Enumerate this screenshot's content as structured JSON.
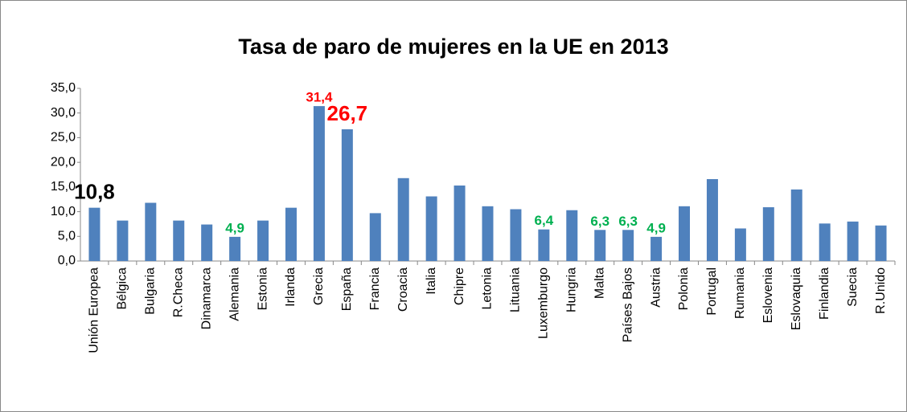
{
  "chart_data": {
    "type": "bar",
    "title": "Tasa de paro de mujeres en la UE en 2013",
    "categories": [
      "Unión Europea",
      "Bélgica",
      "Bulgaria",
      "R.Checa",
      "Dinamarca",
      "Alemania",
      "Estonia",
      "Irlanda",
      "Grecia",
      "España",
      "Francia",
      "Croacia",
      "Italia",
      "Chipre",
      "Letonia",
      "Lituania",
      "Luxemburgo",
      "Hungria",
      "Malta",
      "Países Bajos",
      "Austria",
      "Polonia",
      "Portugal",
      "Rumania",
      "Eslovenia",
      "Eslovaquia",
      "Finlandia",
      "Suecia",
      "R.Unido"
    ],
    "values": [
      10.8,
      8.2,
      11.8,
      8.2,
      7.4,
      4.9,
      8.2,
      10.8,
      31.4,
      26.7,
      9.7,
      16.8,
      13.1,
      15.3,
      11.1,
      10.5,
      6.4,
      10.3,
      6.3,
      6.3,
      4.9,
      11.1,
      16.6,
      6.6,
      10.9,
      14.5,
      7.6,
      8.0,
      7.2
    ],
    "value_labels": [
      "10,8",
      null,
      null,
      null,
      null,
      "4,9",
      null,
      null,
      "31,4",
      "26,7",
      null,
      null,
      null,
      null,
      null,
      null,
      "6,4",
      null,
      "6,3",
      "6,3",
      "4,9",
      null,
      null,
      null,
      null,
      null,
      null,
      null,
      null
    ],
    "value_label_colors": [
      "#000000",
      null,
      null,
      null,
      null,
      "#00b050",
      null,
      null,
      "#ff0000",
      "#ff0000",
      null,
      null,
      null,
      null,
      null,
      null,
      "#00b050",
      null,
      "#00b050",
      "#00b050",
      "#00b050",
      null,
      null,
      null,
      null,
      null,
      null,
      null,
      null
    ],
    "color": "#4f81bd",
    "ylim": [
      0,
      35
    ],
    "yticks": [
      {
        "value": 0,
        "label": "0,0"
      },
      {
        "value": 5,
        "label": "5,0"
      },
      {
        "value": 10,
        "label": "10,0"
      },
      {
        "value": 15,
        "label": "15,0"
      },
      {
        "value": 20,
        "label": "20,0"
      },
      {
        "value": 25,
        "label": "25,0"
      },
      {
        "value": 30,
        "label": "30,0"
      },
      {
        "value": 35,
        "label": "35,0"
      }
    ],
    "grid": false
  }
}
